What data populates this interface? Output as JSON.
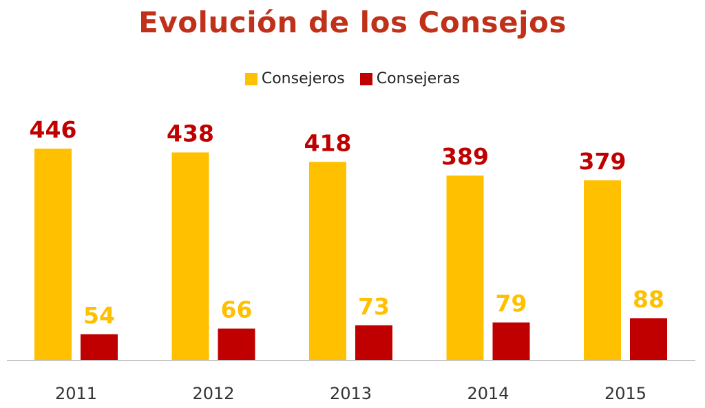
{
  "chart_data": {
    "type": "bar",
    "title": "Evolución de los Consejos",
    "categories": [
      "2011",
      "2012",
      "2013",
      "2014",
      "2015"
    ],
    "series": [
      {
        "name": "Consejeros",
        "values": [
          446,
          438,
          418,
          389,
          379
        ]
      },
      {
        "name": "Consejeras",
        "values": [
          54,
          66,
          73,
          79,
          88
        ]
      }
    ],
    "ylim": [
      0,
      446
    ],
    "legend": "top",
    "grid": false
  },
  "colors": {
    "consejeros": "#FFC000",
    "consejeras": "#C00000",
    "title": "#C0311A",
    "axis": "#999999"
  }
}
